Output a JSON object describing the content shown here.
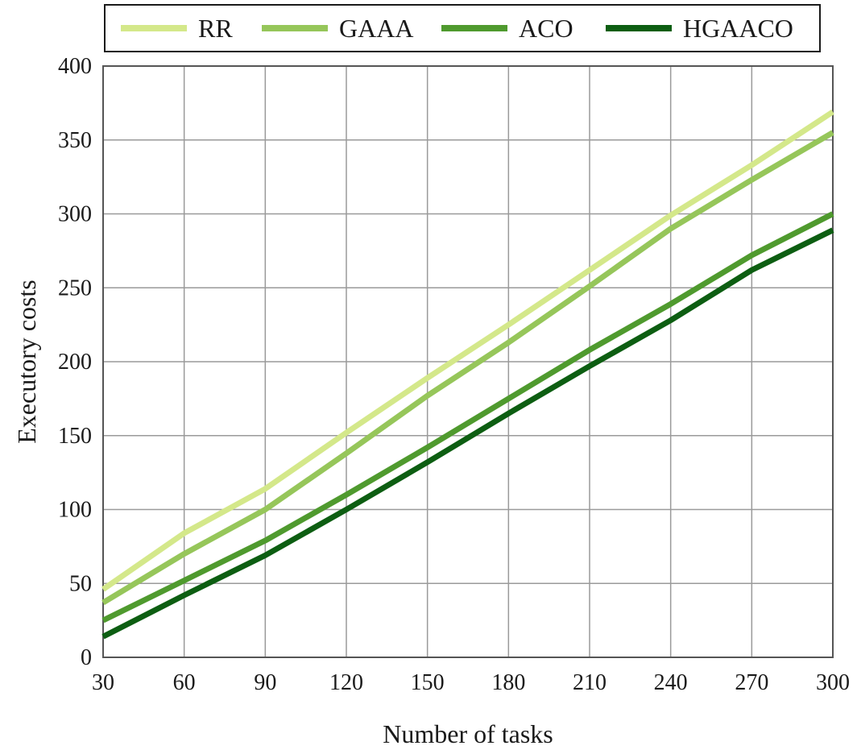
{
  "chart_data": {
    "type": "line",
    "xlabel": "Number of tasks",
    "ylabel": "Executory costs",
    "x": [
      30,
      60,
      90,
      120,
      150,
      180,
      210,
      240,
      270,
      300
    ],
    "xlim": [
      30,
      300
    ],
    "ylim": [
      0,
      400
    ],
    "xticks": [
      "30",
      "60",
      "90",
      "120",
      "150",
      "180",
      "210",
      "240",
      "270",
      "300"
    ],
    "yticks": [
      "0",
      "50",
      "100",
      "150",
      "200",
      "250",
      "300",
      "350",
      "400"
    ],
    "grid": true,
    "legend_position": "top",
    "series": [
      {
        "name": "RR",
        "color": "#d4e88a",
        "values": [
          46,
          84,
          114,
          152,
          189,
          225,
          262,
          299,
          333,
          369
        ]
      },
      {
        "name": "GAAA",
        "color": "#96c65a",
        "values": [
          37,
          70,
          100,
          138,
          177,
          213,
          251,
          290,
          323,
          355
        ]
      },
      {
        "name": "ACO",
        "color": "#4f9a2e",
        "values": [
          25,
          52,
          79,
          110,
          142,
          175,
          208,
          239,
          272,
          300
        ]
      },
      {
        "name": "HGAACO",
        "color": "#0d5e12",
        "values": [
          14,
          42,
          69,
          100,
          132,
          165,
          197,
          228,
          262,
          289
        ]
      }
    ]
  }
}
